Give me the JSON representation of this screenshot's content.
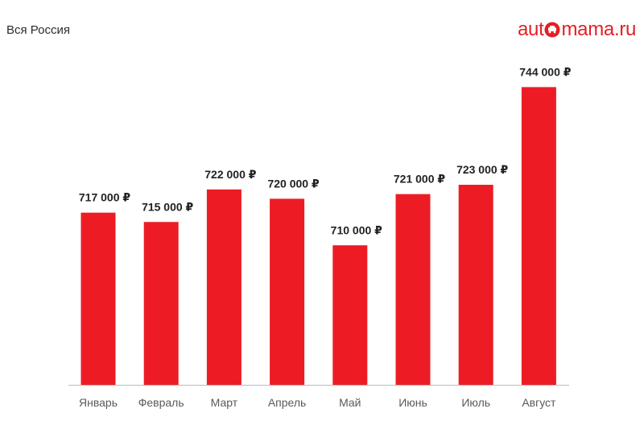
{
  "header": {
    "region": "Вся Россия"
  },
  "logo": {
    "prefix": "aut",
    "suffix": "mama.ru",
    "color": "#e51e25"
  },
  "chart_data": {
    "type": "bar",
    "categories": [
      "Январь",
      "Февраль",
      "Март",
      "Апрель",
      "Май",
      "Июнь",
      "Июль",
      "Август"
    ],
    "values": [
      717000,
      715000,
      722000,
      720000,
      710000,
      721000,
      723000,
      744000
    ],
    "data_labels": [
      "717 000 ₽",
      "715 000 ₽",
      "722 000 ₽",
      "720 000 ₽",
      "710 000 ₽",
      "721 000 ₽",
      "723 000 ₽",
      "744 000 ₽"
    ],
    "title": "",
    "xlabel": "",
    "ylabel": "",
    "ylim": [
      680000,
      747000
    ],
    "grid": false,
    "bar_color": "#ed1c24",
    "axis_color": "#bbbbbb"
  }
}
